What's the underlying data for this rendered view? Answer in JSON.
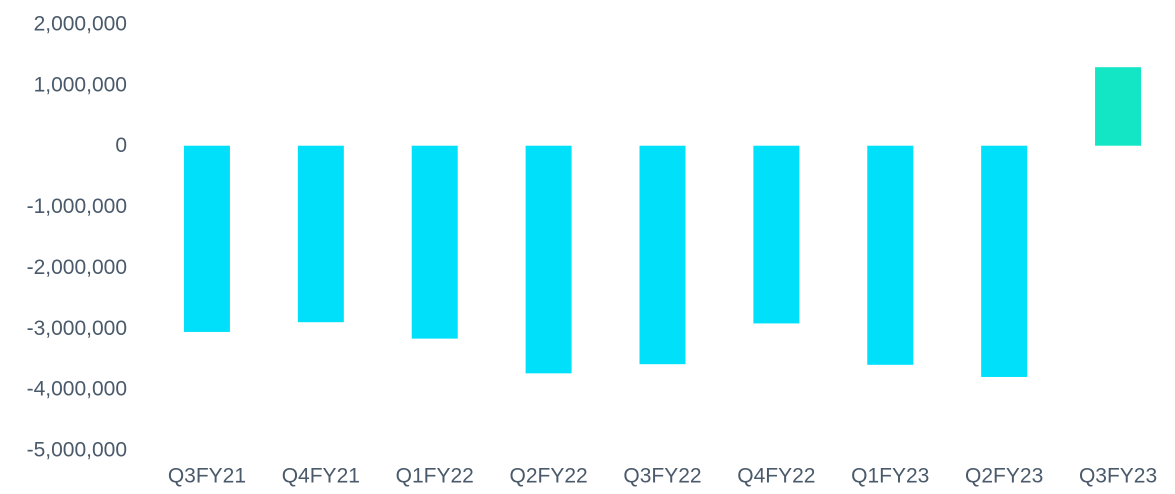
{
  "chart_data": {
    "type": "bar",
    "categories": [
      "Q3FY21",
      "Q4FY21",
      "Q1FY22",
      "Q2FY22",
      "Q3FY22",
      "Q4FY22",
      "Q1FY23",
      "Q2FY23",
      "Q3FY23"
    ],
    "values": [
      -3060000,
      -2900000,
      -3170000,
      -3740000,
      -3590000,
      -2920000,
      -3600000,
      -3800000,
      1290000
    ],
    "title": "",
    "xlabel": "",
    "ylabel": "",
    "ylim": [
      -5000000,
      2000000
    ],
    "yticks": [
      2000000,
      1000000,
      0,
      -1000000,
      -2000000,
      -3000000,
      -4000000,
      -5000000
    ],
    "ytick_labels": [
      "2,000,000",
      "1,000,000",
      "0",
      "-1,000,000",
      "-2,000,000",
      "-3,000,000",
      "-4,000,000",
      "-5,000,000"
    ],
    "grid": false,
    "legend": "none",
    "colors": {
      "negative": "#00e0fa",
      "positive": "#12e6c4",
      "text": "#4a5a6a"
    }
  }
}
